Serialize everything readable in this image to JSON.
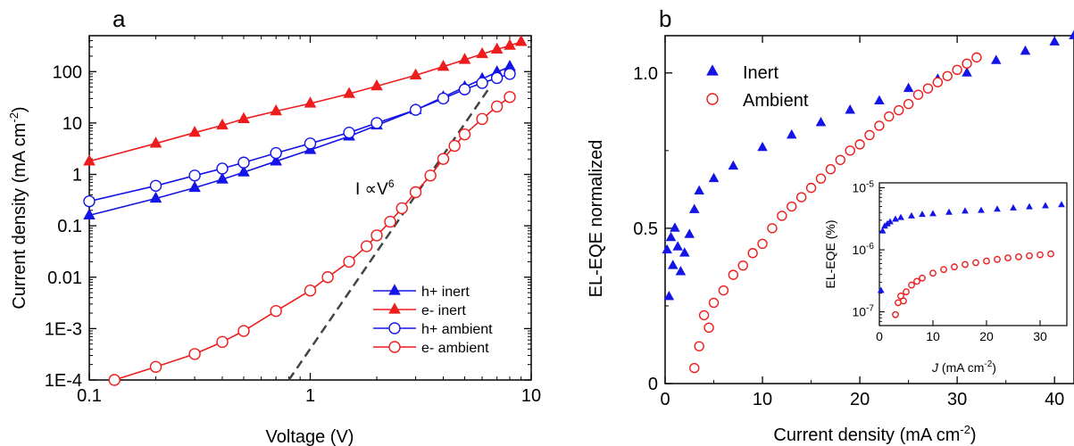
{
  "chart_data": [
    {
      "panel": "a",
      "type": "line",
      "xlabel": "Voltage (V)",
      "ylabel": "Current density (mA cm",
      "ylabel_sup": "-2",
      "ylabel_end": ")",
      "xscale": "log",
      "yscale": "log",
      "xlim": [
        0.1,
        10
      ],
      "ylim": [
        0.0001,
        500
      ],
      "x_ticks": [
        0.1,
        1,
        10
      ],
      "x_tick_labels": [
        "0.1",
        "1",
        "10"
      ],
      "y_ticks": [
        0.0001,
        0.001,
        0.01,
        0.1,
        1,
        10,
        100
      ],
      "y_tick_labels": [
        "1E-4",
        "1E-3",
        "0.01",
        "0.1",
        "1",
        "10",
        "100"
      ],
      "legend_position": "bottom-right",
      "annotation": {
        "text": "I ∝V",
        "sup": "6"
      },
      "guide_line": {
        "style": "dashed",
        "color": "#444444",
        "x": [
          0.8,
          6.5
        ],
        "y": [
          0.0001,
          50
        ]
      },
      "series": [
        {
          "name": "h+ inert",
          "marker": "filled-triangle",
          "color": "#1414e6",
          "x": [
            0.1,
            0.2,
            0.3,
            0.4,
            0.5,
            0.7,
            1.0,
            1.5,
            2.0,
            3.0,
            4.0,
            5.0,
            6.0,
            7.0,
            8.0
          ],
          "y": [
            0.16,
            0.34,
            0.55,
            0.8,
            1.1,
            1.8,
            3.0,
            5.5,
            9.0,
            18,
            32,
            50,
            72,
            98,
            125
          ]
        },
        {
          "name": "e-  inert",
          "marker": "filled-triangle",
          "color": "#ee1c1c",
          "x": [
            0.1,
            0.2,
            0.3,
            0.4,
            0.5,
            0.7,
            1.0,
            1.5,
            2.0,
            3.0,
            4.0,
            5.0,
            6.0,
            7.0,
            8.0,
            9.0
          ],
          "y": [
            1.8,
            4.0,
            6.5,
            9.0,
            12,
            17,
            24,
            37,
            52,
            85,
            125,
            170,
            220,
            270,
            320,
            380
          ]
        },
        {
          "name": "h+ ambient",
          "marker": "open-circle",
          "color": "#1414e6",
          "x": [
            0.1,
            0.2,
            0.3,
            0.4,
            0.5,
            0.7,
            1.0,
            1.5,
            2.0,
            3.0,
            4.0,
            5.0,
            6.0,
            7.0,
            8.0
          ],
          "y": [
            0.3,
            0.6,
            0.95,
            1.3,
            1.7,
            2.6,
            4.0,
            6.5,
            10,
            18,
            30,
            45,
            60,
            75,
            90
          ]
        },
        {
          "name": "e-  ambient",
          "marker": "open-circle",
          "color": "#ee1c1c",
          "x": [
            0.13,
            0.2,
            0.3,
            0.4,
            0.5,
            0.7,
            1.0,
            1.2,
            1.5,
            1.8,
            2.0,
            2.3,
            2.6,
            3.0,
            3.5,
            4.0,
            4.5,
            5.0,
            6.0,
            7.0,
            8.0
          ],
          "y": [
            0.0001,
            0.00018,
            0.00032,
            0.00055,
            0.0009,
            0.0022,
            0.0055,
            0.01,
            0.02,
            0.04,
            0.065,
            0.12,
            0.22,
            0.45,
            0.95,
            2.0,
            3.6,
            6.0,
            12,
            21,
            32
          ]
        }
      ]
    },
    {
      "panel": "b",
      "type": "scatter",
      "xlabel": "Current density (mA cm",
      "xlabel_sup": "-2",
      "xlabel_end": ")",
      "ylabel": "EL-EQE normalized",
      "xlim": [
        0,
        42
      ],
      "ylim": [
        0,
        1.12
      ],
      "x_ticks": [
        0,
        10,
        20,
        30,
        40
      ],
      "x_tick_labels": [
        "0",
        "10",
        "20",
        "30",
        "40"
      ],
      "y_ticks": [
        0,
        0.5,
        1.0
      ],
      "y_tick_labels": [
        "0",
        "0.5",
        "1.0"
      ],
      "legend_position": "top-left",
      "series": [
        {
          "name": "Inert",
          "marker": "filled-triangle",
          "color": "#1414e6",
          "x": [
            0.2,
            0.4,
            0.6,
            0.8,
            1.0,
            1.3,
            1.6,
            2.0,
            2.5,
            3.0,
            3.5,
            5,
            7,
            10,
            13,
            16,
            19,
            22,
            25,
            28,
            31,
            34,
            37,
            40,
            42
          ],
          "y": [
            0.43,
            0.28,
            0.47,
            0.38,
            0.5,
            0.44,
            0.36,
            0.42,
            0.48,
            0.56,
            0.62,
            0.66,
            0.7,
            0.76,
            0.8,
            0.84,
            0.88,
            0.91,
            0.95,
            0.98,
            1.0,
            1.04,
            1.07,
            1.1,
            1.12
          ]
        },
        {
          "name": "Ambient",
          "marker": "open-circle",
          "color": "#ee1c1c",
          "x": [
            3.0,
            3.5,
            4.0,
            4.5,
            5,
            6,
            7,
            8,
            9,
            10,
            11,
            12,
            13,
            14,
            15,
            16,
            17,
            18,
            19,
            20,
            21,
            22,
            23,
            24,
            25,
            26,
            27,
            28,
            29,
            30,
            31,
            32
          ],
          "y": [
            0.05,
            0.12,
            0.22,
            0.18,
            0.26,
            0.3,
            0.35,
            0.38,
            0.42,
            0.45,
            0.5,
            0.54,
            0.57,
            0.6,
            0.63,
            0.66,
            0.69,
            0.72,
            0.75,
            0.77,
            0.8,
            0.83,
            0.86,
            0.88,
            0.9,
            0.93,
            0.95,
            0.97,
            0.99,
            1.01,
            1.03,
            1.05
          ]
        }
      ],
      "inset": {
        "xlabel_italic": "J",
        "xlabel": " (mA cm",
        "xlabel_sup": "-2",
        "xlabel_end": ")",
        "ylabel": "EL-EQE (%)",
        "xscale": "linear",
        "yscale": "log",
        "xlim": [
          0,
          35
        ],
        "ylim": [
          6e-08,
          1.2e-05
        ],
        "x_ticks": [
          0,
          10,
          20,
          30
        ],
        "x_tick_labels": [
          "0",
          "10",
          "20",
          "30"
        ],
        "y_ticks": [
          1e-07,
          1e-06,
          1e-05
        ],
        "y_tick_labels": [
          {
            "base": "10",
            "exp": "-7"
          },
          {
            "base": "10",
            "exp": "-6"
          },
          {
            "base": "10",
            "exp": "-5"
          }
        ],
        "series": [
          {
            "name": "Inert",
            "marker": "filled-triangle",
            "color": "#1414e6",
            "x": [
              0.3,
              0.6,
              1.0,
              1.5,
              2.0,
              3.0,
              4,
              6,
              8,
              10,
              13,
              16,
              19,
              22,
              25,
              28,
              31,
              34
            ],
            "y": [
              2.2e-07,
              2e-06,
              2.4e-06,
              2.6e-06,
              2.8e-06,
              3.1e-06,
              3.3e-06,
              3.5e-06,
              3.7e-06,
              3.8e-06,
              4e-06,
              4.2e-06,
              4.3e-06,
              4.5e-06,
              4.7e-06,
              4.9e-06,
              5.1e-06,
              5.3e-06
            ]
          },
          {
            "name": "Ambient",
            "marker": "open-circle",
            "color": "#ee1c1c",
            "x": [
              3.0,
              3.5,
              4.0,
              4.5,
              5,
              6,
              7,
              8,
              10,
              12,
              14,
              16,
              18,
              20,
              22,
              24,
              26,
              28,
              30,
              32
            ],
            "y": [
              9e-08,
              1.4e-07,
              1.8e-07,
              1.5e-07,
              2.1e-07,
              2.7e-07,
              3.1e-07,
              3.5e-07,
              4.2e-07,
              4.8e-07,
              5.3e-07,
              5.8e-07,
              6.2e-07,
              6.6e-07,
              7e-07,
              7.4e-07,
              7.7e-07,
              8e-07,
              8.3e-07,
              8.6e-07
            ]
          }
        ]
      }
    }
  ]
}
